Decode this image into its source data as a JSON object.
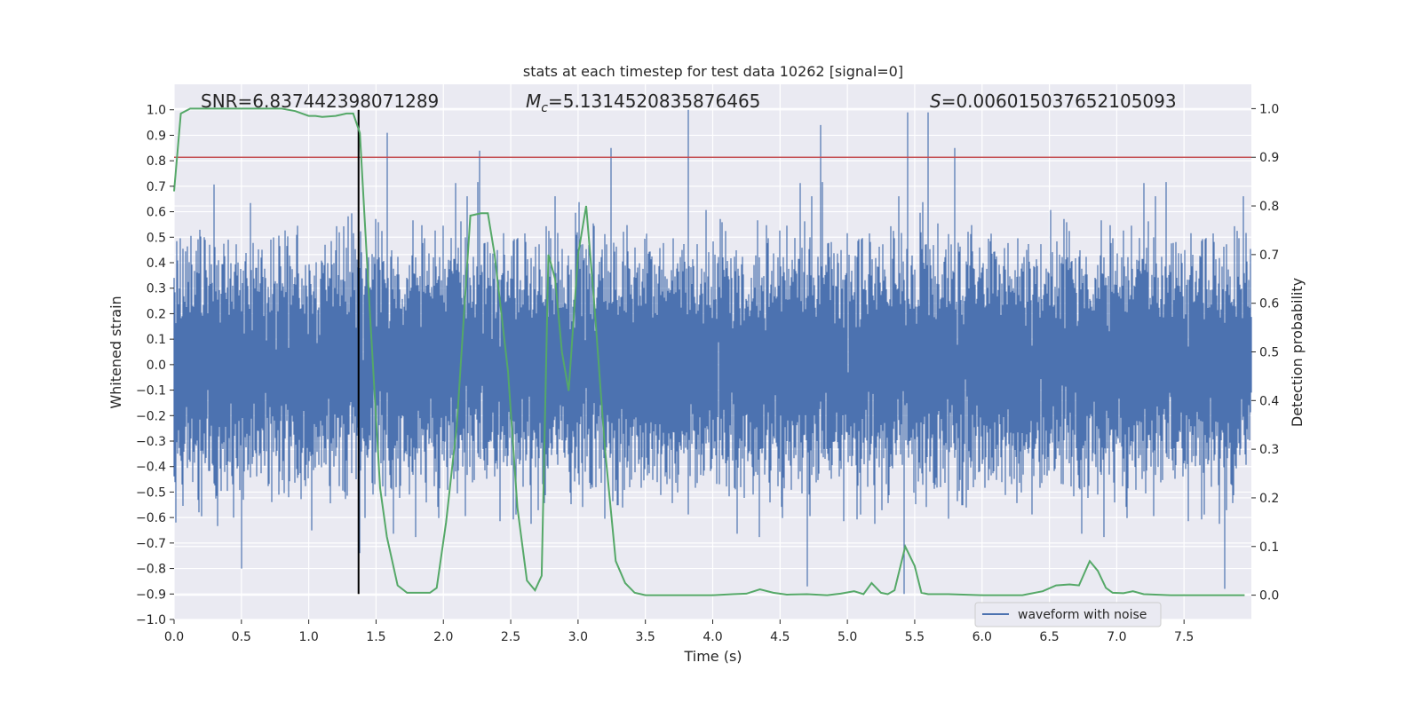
{
  "chart_data": {
    "type": "line",
    "title": "stats at each timestep for test data 10262 [signal=0]",
    "xlabel": "Time (s)",
    "ylabel_left": "Whitened strain",
    "ylabel_right": "Detection probability",
    "xlim": [
      0.0,
      8.0
    ],
    "ylim_left": [
      -1.0,
      1.1
    ],
    "ylim_right": [
      -0.05,
      1.05
    ],
    "x_ticks": [
      0.0,
      0.5,
      1.0,
      1.5,
      2.0,
      2.5,
      3.0,
      3.5,
      4.0,
      4.5,
      5.0,
      5.5,
      6.0,
      6.5,
      7.0,
      7.5
    ],
    "x_tick_labels": [
      "0.0",
      "0.5",
      "1.0",
      "1.5",
      "2.0",
      "2.5",
      "3.0",
      "3.5",
      "4.0",
      "4.5",
      "5.0",
      "5.5",
      "6.0",
      "6.5",
      "7.0",
      "7.5"
    ],
    "y_left_ticks": [
      1.0,
      0.9,
      0.8,
      0.7,
      0.6,
      0.5,
      0.4,
      0.3,
      0.2,
      0.1,
      0.0,
      -0.1,
      -0.2,
      -0.3,
      -0.4,
      -0.5,
      -0.6,
      -0.7,
      -0.8,
      -0.9,
      -1.0
    ],
    "y_left_tick_labels": [
      "1.0",
      "0.9",
      "0.8",
      "0.7",
      "0.6",
      "0.5",
      "0.4",
      "0.3",
      "0.2",
      "0.1",
      "0.0",
      "−0.1",
      "−0.2",
      "−0.3",
      "−0.4",
      "−0.5",
      "−0.6",
      "−0.7",
      "−0.8",
      "−0.9",
      "−1.0"
    ],
    "y_right_ticks": [
      1.0,
      0.9,
      0.8,
      0.7,
      0.6,
      0.5,
      0.4,
      0.3,
      0.2,
      0.1,
      0.0
    ],
    "y_right_tick_labels": [
      "1.0",
      "0.9",
      "0.8",
      "0.7",
      "0.6",
      "0.5",
      "0.4",
      "0.3",
      "0.2",
      "0.1",
      "0.0"
    ],
    "grid": true,
    "annotations": {
      "snr": "SNR=6.837442398071289",
      "mc_symbol": "M",
      "mc_sub": "c",
      "mc_value": "=5.1314520835876465",
      "s_symbol": "S",
      "s_value": "=0.006015037652105093"
    },
    "legend": {
      "location": "lower right",
      "entries": [
        "waveform with noise"
      ]
    },
    "threshold": {
      "value": 0.9,
      "axis": "right",
      "color": "#c44e52"
    },
    "vertical_marker": {
      "x": 1.37,
      "y_from": -0.9,
      "y_to": 1.0,
      "color": "#000000"
    },
    "series": [
      {
        "name": "waveform with noise",
        "axis": "left",
        "color": "#4c72b0",
        "style": "dense-noise",
        "sample_rate": 2048,
        "duration": 8.0,
        "typical_amplitude": 0.2,
        "peak_extremes": [
          {
            "x": 3.82,
            "y": 1.0
          },
          {
            "x": 5.45,
            "y": 0.99
          },
          {
            "x": 5.6,
            "y": 0.99
          },
          {
            "x": 4.8,
            "y": 0.94
          },
          {
            "x": 1.58,
            "y": 0.91
          },
          {
            "x": 2.27,
            "y": 0.84
          },
          {
            "x": 5.42,
            "y": -0.9
          },
          {
            "x": 1.38,
            "y": -0.74
          },
          {
            "x": 4.7,
            "y": -0.87
          },
          {
            "x": 7.8,
            "y": -0.88
          },
          {
            "x": 0.5,
            "y": -0.8
          }
        ]
      },
      {
        "name": "detection probability",
        "axis": "right",
        "color": "#55a868",
        "x": [
          0.0,
          0.05,
          0.12,
          0.25,
          0.5,
          0.8,
          0.9,
          1.0,
          1.05,
          1.1,
          1.2,
          1.28,
          1.33,
          1.38,
          1.45,
          1.53,
          1.58,
          1.66,
          1.73,
          1.82,
          1.9,
          1.95,
          2.02,
          2.1,
          2.2,
          2.28,
          2.33,
          2.38,
          2.48,
          2.55,
          2.62,
          2.68,
          2.73,
          2.78,
          2.83,
          2.88,
          2.93,
          3.0,
          3.06,
          3.12,
          3.2,
          3.28,
          3.35,
          3.42,
          3.5,
          3.75,
          4.0,
          4.15,
          4.25,
          4.35,
          4.45,
          4.55,
          4.7,
          4.85,
          4.95,
          5.05,
          5.12,
          5.18,
          5.25,
          5.3,
          5.35,
          5.43,
          5.5,
          5.55,
          5.6,
          5.75,
          6.0,
          6.3,
          6.45,
          6.55,
          6.65,
          6.72,
          6.8,
          6.86,
          6.92,
          6.97,
          7.05,
          7.12,
          7.2,
          7.4,
          7.95
        ],
        "values": [
          0.83,
          0.99,
          1.0,
          1.0,
          1.0,
          1.0,
          0.995,
          0.985,
          0.985,
          0.983,
          0.985,
          0.99,
          0.99,
          0.95,
          0.6,
          0.22,
          0.12,
          0.02,
          0.005,
          0.005,
          0.005,
          0.015,
          0.15,
          0.35,
          0.78,
          0.785,
          0.785,
          0.7,
          0.46,
          0.18,
          0.03,
          0.01,
          0.04,
          0.7,
          0.65,
          0.5,
          0.42,
          0.7,
          0.8,
          0.6,
          0.3,
          0.07,
          0.025,
          0.005,
          0.0,
          0.0,
          0.0,
          0.002,
          0.003,
          0.012,
          0.005,
          0.001,
          0.002,
          0.0,
          0.003,
          0.008,
          0.002,
          0.025,
          0.005,
          0.002,
          0.01,
          0.1,
          0.06,
          0.005,
          0.002,
          0.002,
          0.0,
          0.0,
          0.008,
          0.02,
          0.022,
          0.02,
          0.07,
          0.05,
          0.015,
          0.005,
          0.004,
          0.008,
          0.002,
          0.0,
          0.0
        ]
      }
    ]
  }
}
